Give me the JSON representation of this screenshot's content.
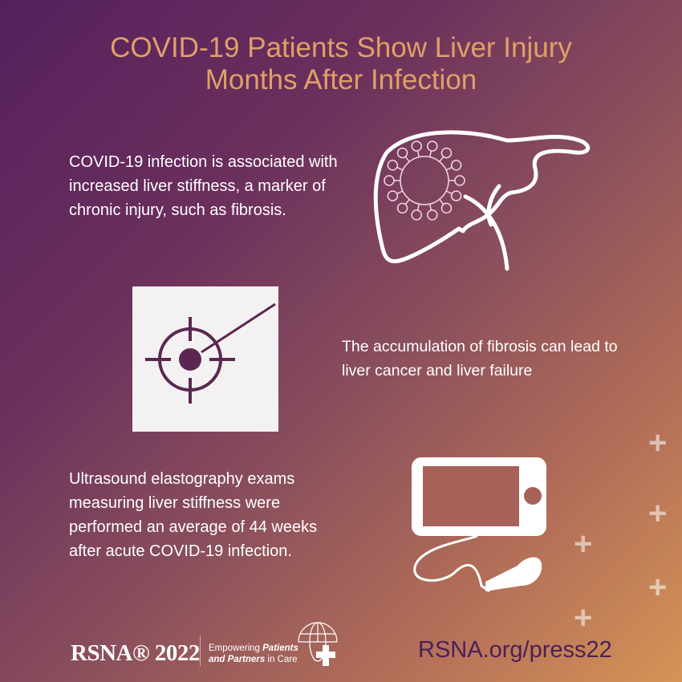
{
  "title": {
    "line1": "COVID-19 Patients Show Liver Injury",
    "line2": "Months After Infection"
  },
  "blocks": [
    {
      "text": "COVID-19 infection is associated with increased liver stiffness, a marker of chronic injury, such as fibrosis.",
      "icon": "liver-virus-icon"
    },
    {
      "text": "The accumulation of fibrosis can lead to liver cancer and liver failure",
      "icon": "target-needle-icon"
    },
    {
      "text": "Ultrasound elastography exams measuring liver stiffness were performed an average of 44 weeks after acute COVID-19 infection.",
      "icon": "ultrasound-device-icon"
    }
  ],
  "footer": {
    "logo": "RSNA® 2022",
    "tagline_1_plain": "Empowering ",
    "tagline_1_bold": "Patients",
    "tagline_2_bold": "and Partners",
    "tagline_2_plain": " in Care",
    "url": "RSNA.org/press22"
  },
  "colors": {
    "title": "#e0a066",
    "url": "#4a1f5a",
    "background_start": "#55205e",
    "background_end": "#d49456"
  }
}
